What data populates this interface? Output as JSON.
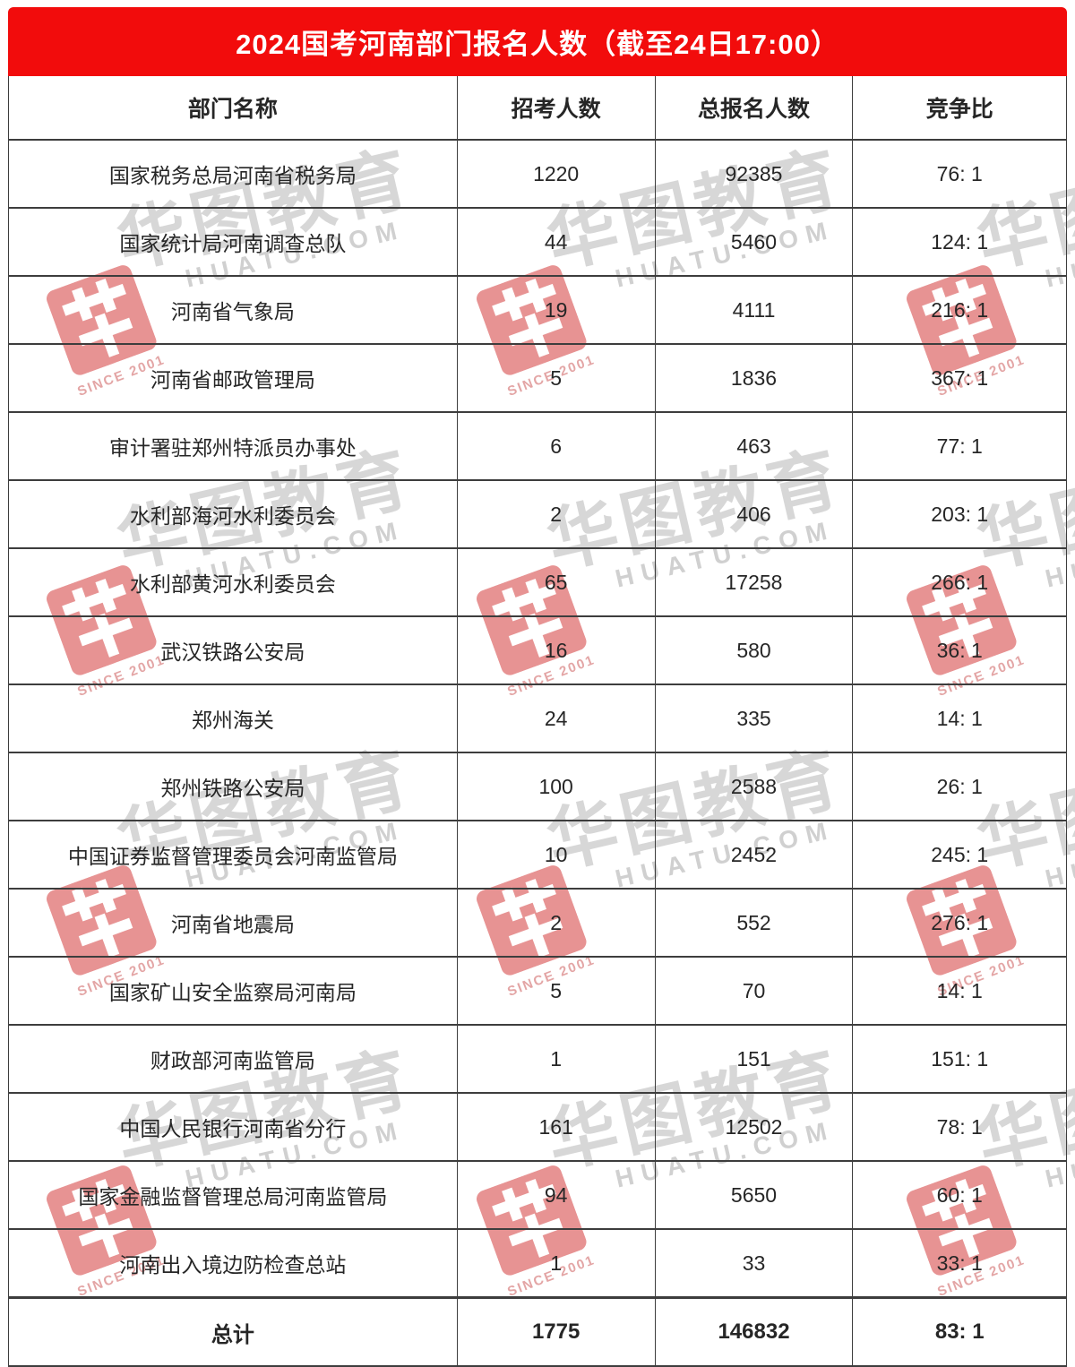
{
  "chart_data": {
    "type": "table",
    "title": "2024国考河南部门报名人数（截至24日17:00）",
    "columns": [
      "部门名称",
      "招考人数",
      "总报名人数",
      "竞争比"
    ],
    "rows": [
      [
        "国家税务总局河南省税务局",
        "1220",
        "92385",
        "76: 1"
      ],
      [
        "国家统计局河南调查总队",
        "44",
        "5460",
        "124: 1"
      ],
      [
        "河南省气象局",
        "19",
        "4111",
        "216: 1"
      ],
      [
        "河南省邮政管理局",
        "5",
        "1836",
        "367: 1"
      ],
      [
        "审计署驻郑州特派员办事处",
        "6",
        "463",
        "77: 1"
      ],
      [
        "水利部海河水利委员会",
        "2",
        "406",
        "203: 1"
      ],
      [
        "水利部黄河水利委员会",
        "65",
        "17258",
        "266: 1"
      ],
      [
        "武汉铁路公安局",
        "16",
        "580",
        "36: 1"
      ],
      [
        "郑州海关",
        "24",
        "335",
        "14: 1"
      ],
      [
        "郑州铁路公安局",
        "100",
        "2588",
        "26: 1"
      ],
      [
        "中国证券监督管理委员会河南监管局",
        "10",
        "2452",
        "245: 1"
      ],
      [
        "河南省地震局",
        "2",
        "552",
        "276: 1"
      ],
      [
        "国家矿山安全监察局河南局",
        "5",
        "70",
        "14: 1"
      ],
      [
        "财政部河南监管局",
        "1",
        "151",
        "151: 1"
      ],
      [
        "中国人民银行河南省分行",
        "161",
        "12502",
        "78: 1"
      ],
      [
        "国家金融监督管理总局河南监管局",
        "94",
        "5650",
        "60: 1"
      ],
      [
        "河南出入境边防检查总站",
        "1",
        "33",
        "33: 1"
      ]
    ],
    "total_row": [
      "总计",
      "1775",
      "146832",
      "83: 1"
    ]
  },
  "watermark": {
    "brand": "华图教育",
    "domain": "HUATU.COM",
    "since": "SINCE 2001"
  },
  "colors": {
    "header_red": "#f20c0c",
    "border_dark": "#3d3d3d",
    "text": "#262626",
    "watermark_gray": "#d7d7d7",
    "watermark_red": "#d43c3c"
  }
}
